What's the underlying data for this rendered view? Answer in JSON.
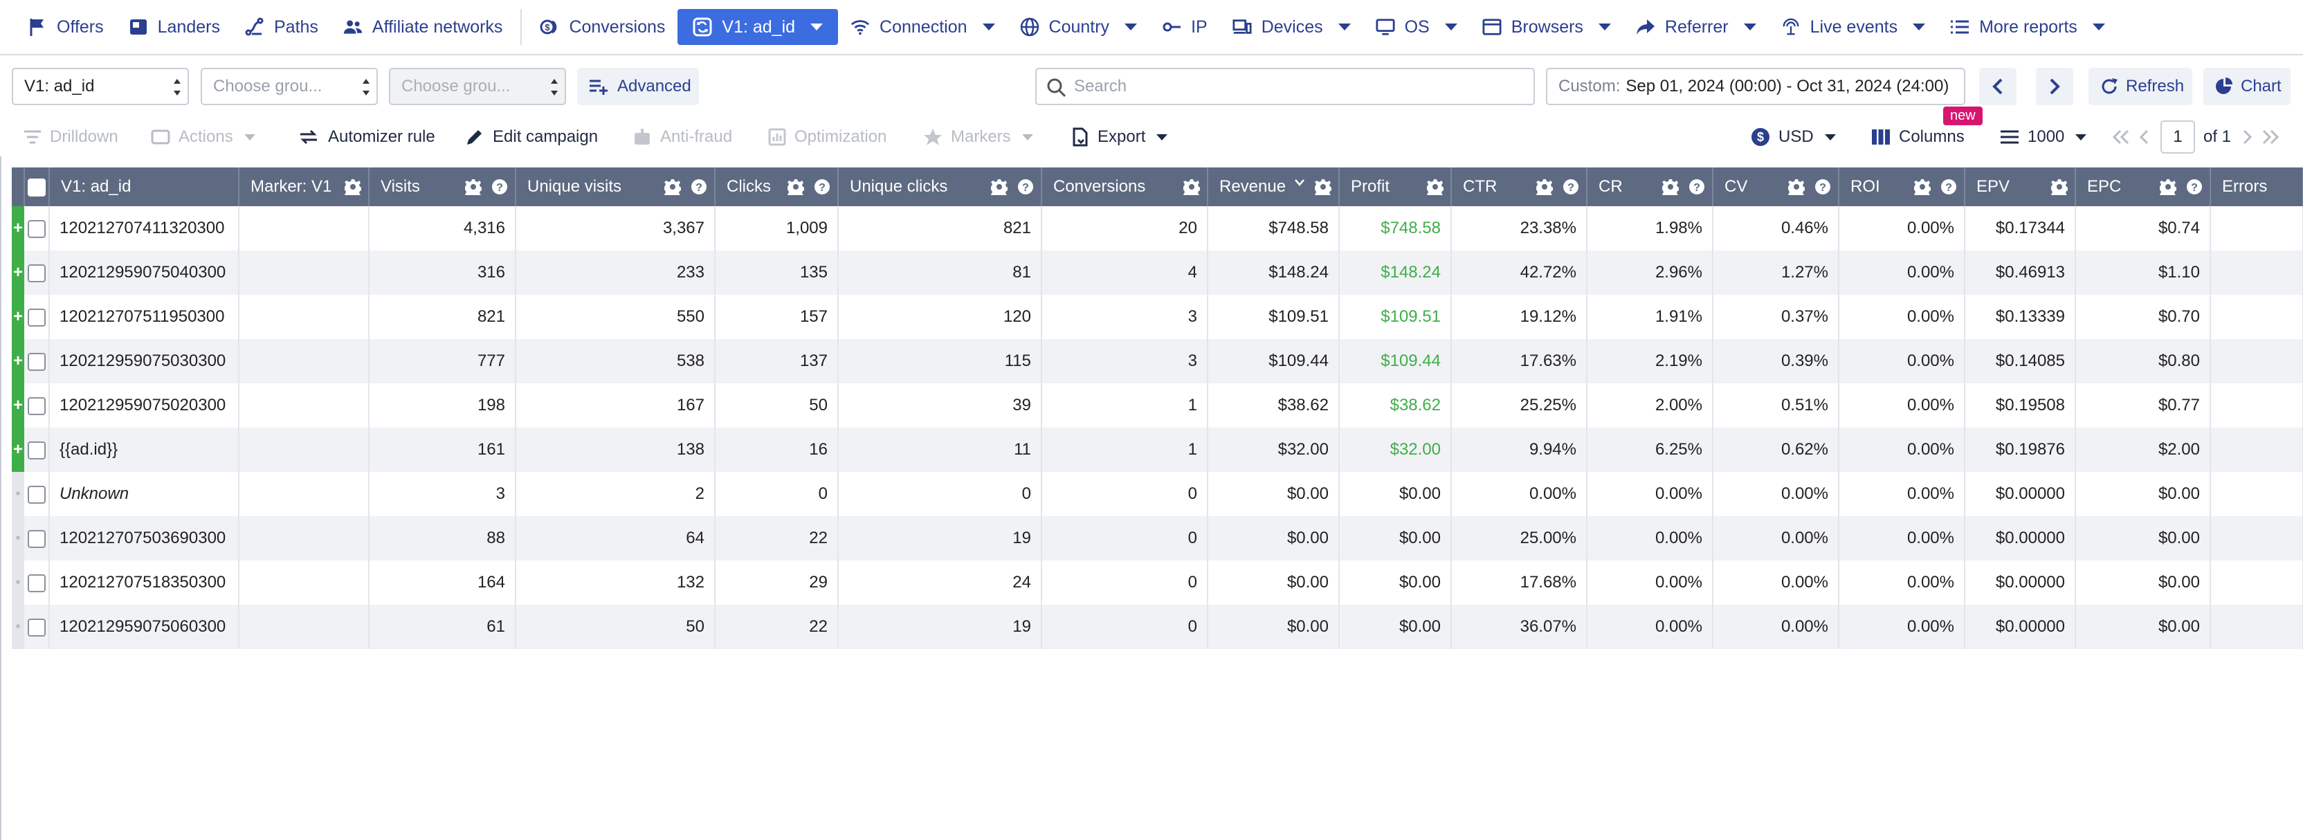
{
  "nav": {
    "items": [
      {
        "label": "Offers",
        "icon": "flag-icon",
        "caret": false,
        "active": false
      },
      {
        "label": "Landers",
        "icon": "lander-icon",
        "caret": false,
        "active": false
      },
      {
        "label": "Paths",
        "icon": "paths-icon",
        "caret": false,
        "active": false
      },
      {
        "label": "Affiliate networks",
        "icon": "people-icon",
        "caret": false,
        "active": false
      },
      {
        "label": "Conversions",
        "icon": "coins-icon",
        "caret": false,
        "active": false
      },
      {
        "label": "V1: ad_id",
        "icon": "refresh-square-icon",
        "caret": true,
        "active": true
      },
      {
        "label": "Connection",
        "icon": "wifi-icon",
        "caret": true,
        "active": false
      },
      {
        "label": "Country",
        "icon": "globe-icon",
        "caret": true,
        "active": false
      },
      {
        "label": "IP",
        "icon": "ip-icon",
        "caret": false,
        "active": false
      },
      {
        "label": "Devices",
        "icon": "devices-icon",
        "caret": true,
        "active": false
      },
      {
        "label": "OS",
        "icon": "monitor-icon",
        "caret": true,
        "active": false
      },
      {
        "label": "Browsers",
        "icon": "browser-icon",
        "caret": true,
        "active": false
      },
      {
        "label": "Referrer",
        "icon": "share-arrow-icon",
        "caret": true,
        "active": false
      },
      {
        "label": "Live events",
        "icon": "live-icon",
        "caret": true,
        "active": false
      },
      {
        "label": "More reports",
        "icon": "list-icon",
        "caret": true,
        "active": false
      }
    ]
  },
  "filters": {
    "group1": "V1: ad_id",
    "group2": "Choose grou...",
    "group3": "Choose grou...",
    "advanced": "Advanced",
    "search_placeholder": "Search",
    "date_label": "Custom:",
    "date_value": "Sep 01, 2024 (00:00) - Oct 31, 2024 (24:00)",
    "refresh": "Refresh",
    "chart": "Chart",
    "new_badge": "new"
  },
  "toolbar": {
    "drilldown": "Drilldown",
    "actions": "Actions",
    "automizer": "Automizer rule",
    "edit_campaign": "Edit campaign",
    "anti_fraud": "Anti-fraud",
    "optimization": "Optimization",
    "markers": "Markers",
    "export": "Export",
    "currency": "USD",
    "columns": "Columns",
    "per_page": "1000",
    "page": "1",
    "of_pages": "of 1"
  },
  "table": {
    "columns": [
      "V1: ad_id",
      "Marker: V1",
      "Visits",
      "Unique visits",
      "Clicks",
      "Unique clicks",
      "Conversions",
      "Revenue",
      "Profit",
      "CTR",
      "CR",
      "CV",
      "ROI",
      "EPV",
      "EPC",
      "Errors"
    ],
    "rows": [
      {
        "expand": "+",
        "cells": [
          "120212707411320300",
          "",
          "4,316",
          "3,367",
          "1,009",
          "821",
          "20",
          "$748.58",
          "$748.58",
          "23.38%",
          "1.98%",
          "0.46%",
          "0.00%",
          "$0.17344",
          "$0.74",
          ""
        ],
        "profit_positive": true
      },
      {
        "expand": "+",
        "cells": [
          "120212959075040300",
          "",
          "316",
          "233",
          "135",
          "81",
          "4",
          "$148.24",
          "$148.24",
          "42.72%",
          "2.96%",
          "1.27%",
          "0.00%",
          "$0.46913",
          "$1.10",
          ""
        ],
        "profit_positive": true
      },
      {
        "expand": "+",
        "cells": [
          "120212707511950300",
          "",
          "821",
          "550",
          "157",
          "120",
          "3",
          "$109.51",
          "$109.51",
          "19.12%",
          "1.91%",
          "0.37%",
          "0.00%",
          "$0.13339",
          "$0.70",
          ""
        ],
        "profit_positive": true
      },
      {
        "expand": "+",
        "cells": [
          "120212959075030300",
          "",
          "777",
          "538",
          "137",
          "115",
          "3",
          "$109.44",
          "$109.44",
          "17.63%",
          "2.19%",
          "0.39%",
          "0.00%",
          "$0.14085",
          "$0.80",
          ""
        ],
        "profit_positive": true
      },
      {
        "expand": "+",
        "cells": [
          "120212959075020300",
          "",
          "198",
          "167",
          "50",
          "39",
          "1",
          "$38.62",
          "$38.62",
          "25.25%",
          "2.00%",
          "0.51%",
          "0.00%",
          "$0.19508",
          "$0.77",
          ""
        ],
        "profit_positive": true
      },
      {
        "expand": "+",
        "cells": [
          "{{ad.id}}",
          "",
          "161",
          "138",
          "16",
          "11",
          "1",
          "$32.00",
          "$32.00",
          "9.94%",
          "6.25%",
          "0.62%",
          "0.00%",
          "$0.19876",
          "$2.00",
          ""
        ],
        "profit_positive": true
      },
      {
        "expand": "•",
        "cells": [
          "Unknown",
          "",
          "3",
          "2",
          "0",
          "0",
          "0",
          "$0.00",
          "$0.00",
          "0.00%",
          "0.00%",
          "0.00%",
          "0.00%",
          "$0.00000",
          "$0.00",
          ""
        ],
        "profit_positive": false,
        "italic": true
      },
      {
        "expand": "•",
        "cells": [
          "120212707503690300",
          "",
          "88",
          "64",
          "22",
          "19",
          "0",
          "$0.00",
          "$0.00",
          "25.00%",
          "0.00%",
          "0.00%",
          "0.00%",
          "$0.00000",
          "$0.00",
          ""
        ],
        "profit_positive": false
      },
      {
        "expand": "•",
        "cells": [
          "120212707518350300",
          "",
          "164",
          "132",
          "29",
          "24",
          "0",
          "$0.00",
          "$0.00",
          "17.68%",
          "0.00%",
          "0.00%",
          "0.00%",
          "$0.00000",
          "$0.00",
          ""
        ],
        "profit_positive": false
      },
      {
        "expand": "•",
        "cells": [
          "120212959075060300",
          "",
          "61",
          "50",
          "22",
          "19",
          "0",
          "$0.00",
          "$0.00",
          "36.07%",
          "0.00%",
          "0.00%",
          "0.00%",
          "$0.00000",
          "$0.00",
          ""
        ],
        "profit_positive": false
      }
    ]
  },
  "colors": {
    "accent": "#3b6ce0",
    "nav_text": "#2a3f8f",
    "header_bg": "#5d6a82",
    "profit_green": "#3fae49",
    "expander_green": "#3fae49",
    "new_badge": "#d6156f"
  }
}
